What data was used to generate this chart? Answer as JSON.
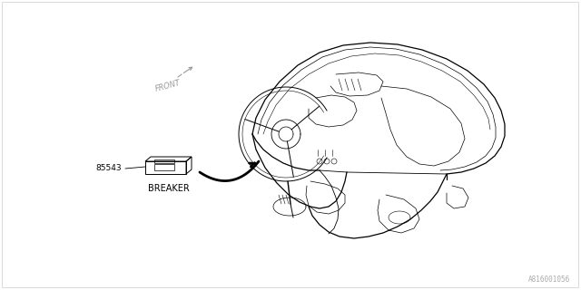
{
  "bg_color": "#ffffff",
  "line_color": "#000000",
  "light_line_color": "#555555",
  "gray_color": "#999999",
  "part_number": "85543",
  "part_label": "BREAKER",
  "front_label": "FRONT",
  "doc_id": "A816001056",
  "fig_width": 6.4,
  "fig_height": 3.2,
  "dpi": 100,
  "border_color": "#bbbbbb"
}
